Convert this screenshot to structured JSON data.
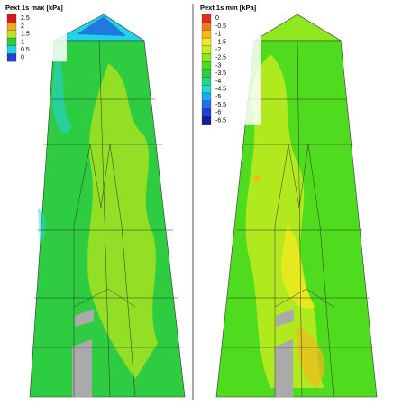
{
  "panels": [
    {
      "legend": {
        "title": "Pext 1s max [kPa]",
        "levels": [
          {
            "label": "2.5",
            "color": "#d7191c"
          },
          {
            "label": "2",
            "color": "#f5a623"
          },
          {
            "label": "1.5",
            "color": "#b5e61d"
          },
          {
            "label": "1",
            "color": "#2ecc40"
          },
          {
            "label": "0.5",
            "color": "#22d3e6"
          },
          {
            "label": "0",
            "color": "#1f3fd9"
          }
        ]
      }
    },
    {
      "legend": {
        "title": "Pext 1s min [kPa]",
        "levels": [
          {
            "label": "0",
            "color": "#e0301e"
          },
          {
            "label": "-0.5",
            "color": "#f07a1e"
          },
          {
            "label": "-1",
            "color": "#f5b81e"
          },
          {
            "label": "-1.5",
            "color": "#f2e81e"
          },
          {
            "label": "-2",
            "color": "#c8ee1e"
          },
          {
            "label": "-2.5",
            "color": "#8ee81e"
          },
          {
            "label": "-3",
            "color": "#4fdc1e"
          },
          {
            "label": "-3.5",
            "color": "#2ecc40"
          },
          {
            "label": "-4",
            "color": "#20d68a"
          },
          {
            "label": "-4.5",
            "color": "#20d8d0"
          },
          {
            "label": "-5",
            "color": "#20a8f0"
          },
          {
            "label": "-5.5",
            "color": "#2070f0"
          },
          {
            "label": "-6",
            "color": "#1f3fd9"
          },
          {
            "label": "-6.5",
            "color": "#1a1a9a"
          }
        ]
      }
    }
  ]
}
